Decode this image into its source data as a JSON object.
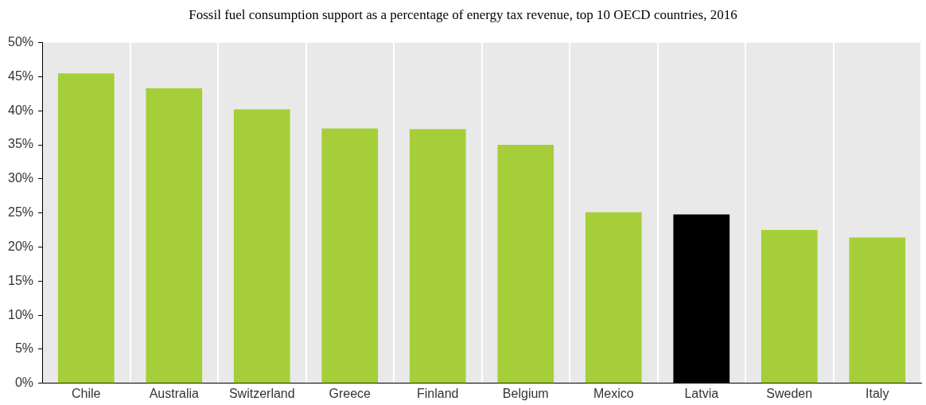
{
  "chart_data": {
    "type": "bar",
    "title": "Fossil fuel consumption support as a percentage of energy tax revenue, top 10 OECD countries, 2016",
    "categories": [
      "Chile",
      "Australia",
      "Switzerland",
      "Greece",
      "Finland",
      "Belgium",
      "Mexico",
      "Latvia",
      "Sweden",
      "Italy"
    ],
    "values": [
      45.5,
      43.3,
      40.2,
      37.4,
      37.3,
      35.0,
      25.1,
      24.8,
      22.5,
      21.4
    ],
    "colors": [
      "#a6ce39",
      "#a6ce39",
      "#a6ce39",
      "#a6ce39",
      "#a6ce39",
      "#a6ce39",
      "#a6ce39",
      "#000000",
      "#a6ce39",
      "#a6ce39"
    ],
    "ylim": [
      0,
      50
    ],
    "yticks": [
      {
        "value": 0,
        "label": "0%"
      },
      {
        "value": 5,
        "label": "5%"
      },
      {
        "value": 10,
        "label": "10%"
      },
      {
        "value": 15,
        "label": "15%"
      },
      {
        "value": 20,
        "label": "20%"
      },
      {
        "value": 25,
        "label": "25%"
      },
      {
        "value": 30,
        "label": "30%"
      },
      {
        "value": 35,
        "label": "35%"
      },
      {
        "value": 40,
        "label": "40%"
      },
      {
        "value": 45,
        "label": "45%"
      },
      {
        "value": 50,
        "label": "50%"
      }
    ],
    "grid": "x",
    "legend": false
  }
}
